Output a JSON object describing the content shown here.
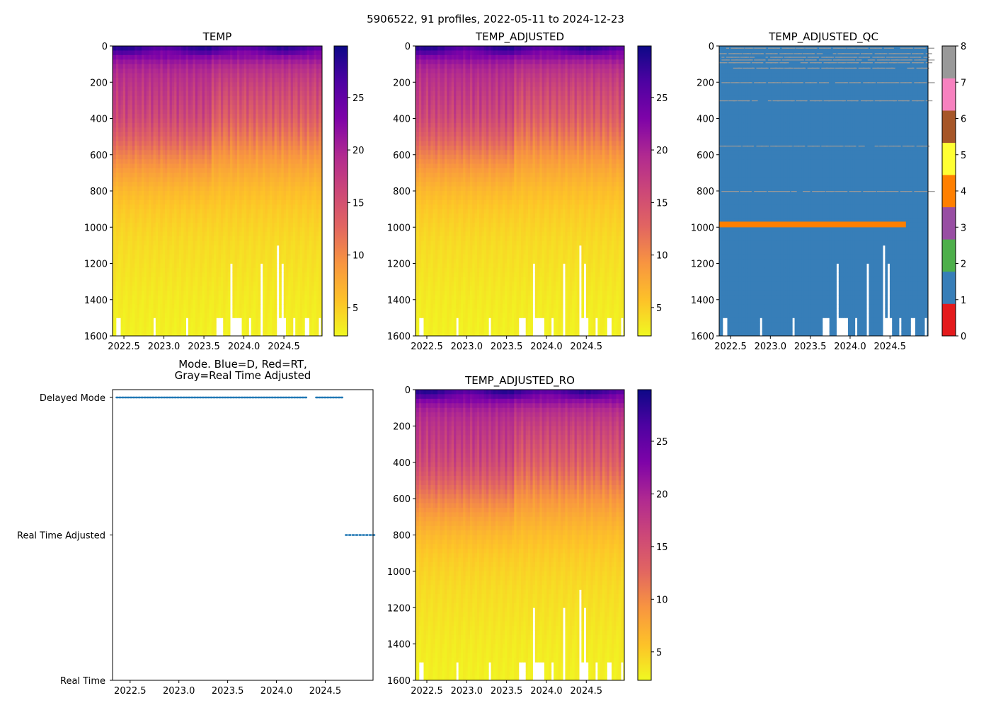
{
  "chart_data": {
    "type": "heatmap",
    "suptitle": "5906522, 91 profiles, 2022-05-11 to 2024-12-23",
    "profile_count": 91,
    "time_range": [
      2022.358,
      2024.977
    ],
    "depth_range": [
      0,
      1600
    ],
    "depth_ticks": [
      "0",
      "200",
      "400",
      "600",
      "800",
      "1000",
      "1200",
      "1400",
      "1600"
    ],
    "time_ticks": [
      "2022.5",
      "2023.0",
      "2023.5",
      "2024.0",
      "2024.5"
    ],
    "depth_levels": [
      0,
      50,
      100,
      150,
      200,
      300,
      400,
      500,
      600,
      700,
      800,
      900,
      1000,
      1100,
      1200,
      1300,
      1400,
      1500,
      1600
    ],
    "mean_temperature_profile": [
      28,
      23,
      20,
      18.5,
      17.5,
      16,
      14.5,
      12.2,
      9.8,
      7.8,
      6.2,
      5.2,
      4.6,
      4.1,
      3.8,
      3.5,
      3.2,
      3.0,
      2.8
    ],
    "profile_max_depth_exceptions": {
      "2": 1500,
      "3": 1500,
      "18": 1500,
      "32": 1500,
      "45": 1500,
      "46": 1500,
      "47": 1500,
      "51": 1200,
      "52": 1500,
      "53": 1500,
      "54": 1500,
      "55": 1500,
      "59": 1500,
      "64": 1200,
      "71": 1100,
      "72": 1500,
      "73": 1200,
      "74": 1500,
      "78": 1500,
      "83": 1500,
      "84": 1500,
      "89": 1500
    },
    "panels": [
      {
        "title": "TEMP",
        "kind": "temp",
        "colorbar": {
          "range": [
            2.3,
            29.9
          ],
          "ticks": [
            "5",
            "10",
            "15",
            "20",
            "25"
          ],
          "colormap": "plasma_r"
        }
      },
      {
        "title": "TEMP_ADJUSTED",
        "kind": "temp",
        "colorbar": {
          "range": [
            2.3,
            29.9
          ],
          "ticks": [
            "5",
            "10",
            "15",
            "20",
            "25"
          ],
          "colormap": "plasma_r"
        }
      },
      {
        "title": "TEMP_ADJUSTED_QC",
        "kind": "qc",
        "colorbar": {
          "range": [
            0,
            8
          ],
          "ticks": [
            "0",
            "1",
            "2",
            "3",
            "4",
            "5",
            "6",
            "7",
            "8"
          ],
          "colors": [
            "#e41a1c",
            "#377eb8",
            "#4daf4a",
            "#984ea3",
            "#ff7f00",
            "#ffff33",
            "#a65628",
            "#f781bf",
            "#999999"
          ]
        }
      },
      {
        "title": "Mode. Blue=D, Red=RT,\nGray=Real Time Adjusted",
        "title_lines": [
          "Mode. Blue=D, Red=RT,",
          "Gray=Real Time Adjusted"
        ],
        "kind": "mode"
      },
      {
        "title": "TEMP_ADJUSTED_RO",
        "kind": "temp",
        "colorbar": {
          "range": [
            2.3,
            29.9
          ],
          "ticks": [
            "5",
            "10",
            "15",
            "20",
            "25"
          ],
          "colormap": "plasma_r"
        }
      }
    ],
    "qc": {
      "dominant_flag": 1,
      "flag4_band_depth": 985,
      "flag4_band_time_range": [
        2022.36,
        2024.7
      ],
      "sparse_flag8_depths": [
        10,
        40,
        60,
        75,
        90,
        120,
        200,
        300,
        550,
        800
      ]
    },
    "mode": {
      "categories": [
        "Real Time",
        "Real Time Adjusted",
        "Delayed Mode"
      ],
      "profile_modes": "DDDDDDDDDDDDDDDDDDDDDDDDDDDDDDDDDDDDDDDDDDDDDDDDDDDDDDDDDDDDDDDDDDDDDDDDDDDDDDDDDDAAAAAAAAA",
      "delayed_gap": [
        2024.31,
        2024.4
      ],
      "xlim": [
        2022.32,
        2024.99
      ]
    }
  }
}
